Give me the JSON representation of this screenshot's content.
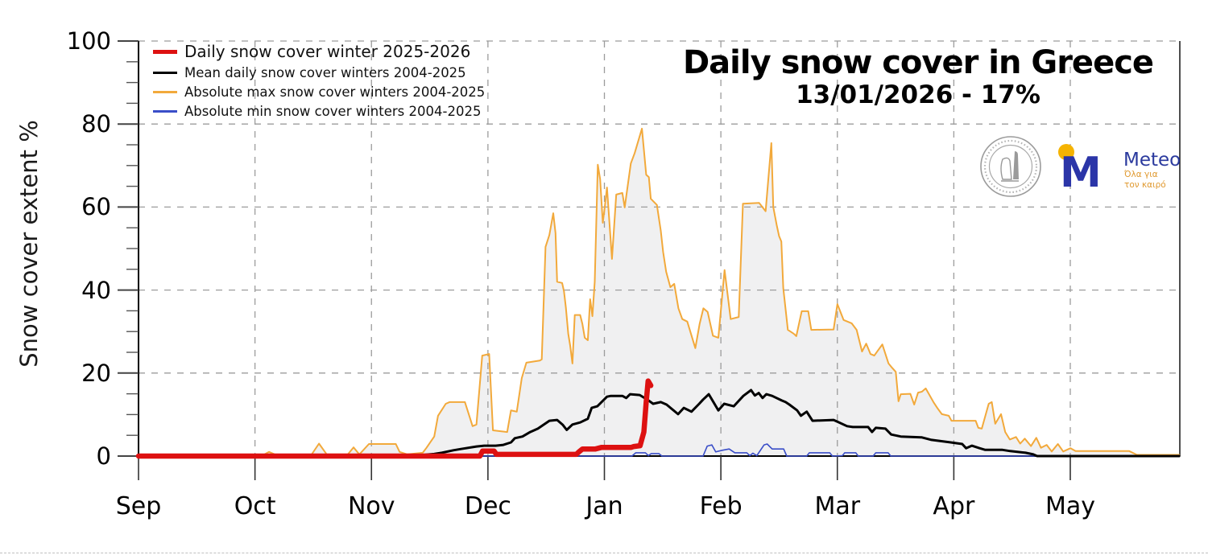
{
  "title": "Daily snow cover in Greece",
  "subtitle": "13/01/2026 - 17%",
  "legend": {
    "items": [
      {
        "label": "Daily snow cover winter 2025-2026",
        "color": "#dd1111",
        "emphasis": true
      },
      {
        "label": "Mean daily snow cover winters 2004-2025",
        "color": "#000000",
        "emphasis": false
      },
      {
        "label": "Absolute max snow cover winters 2004-2025",
        "color": "#f2a93b",
        "emphasis": false
      },
      {
        "label": "Absolute min snow cover winters 2004-2025",
        "color": "#3a4ec8",
        "emphasis": false
      }
    ]
  },
  "branding": {
    "seal": {
      "name": "observatory circular seal"
    },
    "meteo": {
      "m_letter": "M",
      "wordmark": "Meteo",
      "tagline_line1": "Όλα για",
      "tagline_line2": "τον καιρό",
      "colors": {
        "blue": "#2b35a8",
        "yellow": "#f5b301",
        "tagline": "#e0992f",
        "wordmark": "#2b3a9e"
      }
    }
  },
  "chart_data": {
    "type": "line",
    "title": "Daily snow cover in Greece",
    "subtitle": "13/01/2026 - 17%",
    "ylabel": "Snow cover extent %",
    "xlabel": "",
    "ylim": [
      0,
      100
    ],
    "grid": "dashed",
    "units": "percent of Greece covered by snow",
    "x_unit": "days since Sep 1 (months drawn equal width, 1 month = 30.33 days)",
    "y_axis": {
      "ticks": [
        0,
        20,
        40,
        60,
        80,
        100
      ],
      "minor_step": 5
    },
    "x_axis": {
      "months": [
        "Sep",
        "Oct",
        "Nov",
        "Dec",
        "Jan",
        "Feb",
        "Mar",
        "Apr",
        "May"
      ]
    },
    "series": [
      {
        "name": "Absolute max snow cover winters 2004-2025",
        "color": "#f2a93b",
        "width": 2,
        "fill": "#f0f0f1",
        "points": [
          [
            0,
            0
          ],
          [
            32,
            0
          ],
          [
            34,
            1
          ],
          [
            36,
            0.2
          ],
          [
            45,
            0.3
          ],
          [
            47,
            3
          ],
          [
            49,
            0.4
          ],
          [
            54.5,
            0.4
          ],
          [
            56,
            2.1
          ],
          [
            57.5,
            0.4
          ],
          [
            60,
            2.9
          ],
          [
            67,
            2.9
          ],
          [
            68,
            1
          ],
          [
            70,
            0.4
          ],
          [
            74,
            0.8
          ],
          [
            75,
            2
          ],
          [
            77,
            4.7
          ],
          [
            78,
            9.7
          ],
          [
            80,
            12.6
          ],
          [
            81,
            13
          ],
          [
            85,
            13
          ],
          [
            87,
            7.2
          ],
          [
            88,
            7.6
          ],
          [
            89.5,
            24.2
          ],
          [
            91.3,
            24.6
          ],
          [
            92.3,
            6.2
          ],
          [
            96,
            5.8
          ],
          [
            97,
            11
          ],
          [
            98.5,
            10.7
          ],
          [
            99.8,
            18.8
          ],
          [
            101,
            22.5
          ],
          [
            104.5,
            23
          ],
          [
            105,
            23.3
          ],
          [
            106,
            50.4
          ],
          [
            107,
            53.3
          ],
          [
            108,
            58.5
          ],
          [
            108.6,
            53.7
          ],
          [
            109,
            42
          ],
          [
            110.3,
            41.7
          ],
          [
            110.8,
            39.7
          ],
          [
            111.3,
            35.7
          ],
          [
            111.9,
            29.5
          ],
          [
            112.4,
            26.6
          ],
          [
            113,
            22.3
          ],
          [
            113.6,
            34
          ],
          [
            115,
            34
          ],
          [
            115.6,
            31.8
          ],
          [
            116.2,
            28.5
          ],
          [
            117,
            27.9
          ],
          [
            117.6,
            37.8
          ],
          [
            118.2,
            33.7
          ],
          [
            118.8,
            42
          ],
          [
            119.6,
            70.2
          ],
          [
            120.2,
            66.7
          ],
          [
            120.9,
            56.2
          ],
          [
            121.4,
            59.9
          ],
          [
            122,
            64.7
          ],
          [
            123.3,
            47.5
          ],
          [
            124.4,
            63
          ],
          [
            126,
            63.4
          ],
          [
            126.6,
            59.9
          ],
          [
            128.2,
            70.5
          ],
          [
            129.2,
            73
          ],
          [
            131.1,
            78.9
          ],
          [
            132.2,
            67.8
          ],
          [
            132.9,
            67.2
          ],
          [
            133.4,
            62
          ],
          [
            135,
            60.5
          ],
          [
            136,
            54.3
          ],
          [
            136.6,
            49.2
          ],
          [
            137.4,
            44.4
          ],
          [
            138.5,
            40.7
          ],
          [
            139.5,
            41.5
          ],
          [
            140.6,
            35.6
          ],
          [
            141.6,
            33
          ],
          [
            142.9,
            32.4
          ],
          [
            145,
            26
          ],
          [
            146.1,
            31.8
          ],
          [
            147.1,
            35.6
          ],
          [
            148.2,
            34.7
          ],
          [
            149.6,
            29
          ],
          [
            151,
            28.5
          ],
          [
            152.6,
            44.8
          ],
          [
            154.2,
            33
          ],
          [
            156.3,
            33.5
          ],
          [
            157.4,
            60.8
          ],
          [
            161.6,
            61
          ],
          [
            163.3,
            59
          ],
          [
            164.8,
            75.4
          ],
          [
            165.3,
            60
          ],
          [
            166.2,
            55.6
          ],
          [
            166.8,
            53
          ],
          [
            167.4,
            51.7
          ],
          [
            167.9,
            40.5
          ],
          [
            169.1,
            30.4
          ],
          [
            170.6,
            29.5
          ],
          [
            171.3,
            28.9
          ],
          [
            172.7,
            34.9
          ],
          [
            174.4,
            34.9
          ],
          [
            175.2,
            30.4
          ],
          [
            181,
            30.5
          ],
          [
            182,
            36.6
          ],
          [
            183.6,
            32.8
          ],
          [
            185.7,
            32
          ],
          [
            187,
            30.4
          ],
          [
            188.4,
            25.2
          ],
          [
            189.5,
            27.1
          ],
          [
            190.6,
            24.6
          ],
          [
            191.6,
            24.2
          ],
          [
            193.7,
            26.9
          ],
          [
            195.3,
            22.3
          ],
          [
            196.2,
            21.3
          ],
          [
            197.2,
            20.3
          ],
          [
            197.9,
            13.2
          ],
          [
            198.5,
            14.9
          ],
          [
            201,
            15
          ],
          [
            202,
            12.4
          ],
          [
            203,
            15.3
          ],
          [
            204,
            15.5
          ],
          [
            205,
            16.3
          ],
          [
            207,
            13
          ],
          [
            208,
            11.6
          ],
          [
            209.2,
            10.1
          ],
          [
            211,
            9.7
          ],
          [
            211.7,
            8.5
          ],
          [
            218,
            8.5
          ],
          [
            218.7,
            6.8
          ],
          [
            219.6,
            6.6
          ],
          [
            221.4,
            12.6
          ],
          [
            222.2,
            13
          ],
          [
            223.1,
            7.8
          ],
          [
            224.6,
            10.1
          ],
          [
            225.7,
            5.8
          ],
          [
            226.9,
            4
          ],
          [
            228.5,
            4.6
          ],
          [
            229.6,
            3
          ],
          [
            230.8,
            4.2
          ],
          [
            232.4,
            2.4
          ],
          [
            233.8,
            4.4
          ],
          [
            235,
            2
          ],
          [
            236.5,
            2.7
          ],
          [
            237.8,
            1.1
          ],
          [
            239.4,
            2.9
          ],
          [
            240.8,
            1.1
          ],
          [
            242.7,
            1.9
          ],
          [
            244,
            1.2
          ],
          [
            258,
            1.2
          ],
          [
            260,
            0.3
          ],
          [
            271,
            0.3
          ]
        ]
      },
      {
        "name": "Absolute min snow cover winters 2004-2025",
        "color": "#3a4ec8",
        "width": 1.6,
        "fill": null,
        "points": [
          [
            0,
            0
          ],
          [
            128.5,
            0
          ],
          [
            129.5,
            0.8
          ],
          [
            132,
            0.8
          ],
          [
            132.8,
            0.1
          ],
          [
            133.5,
            0.6
          ],
          [
            135.5,
            0.6
          ],
          [
            136.3,
            0
          ],
          [
            147,
            0
          ],
          [
            148.1,
            2.4
          ],
          [
            149.3,
            2.7
          ],
          [
            150.3,
            1
          ],
          [
            152,
            1.4
          ],
          [
            153.8,
            1.7
          ],
          [
            155.3,
            0.8
          ],
          [
            158.4,
            0.8
          ],
          [
            159.2,
            0.1
          ],
          [
            160,
            0.7
          ],
          [
            161,
            0.1
          ],
          [
            162.9,
            2.7
          ],
          [
            163.7,
            2.9
          ],
          [
            165,
            1.7
          ],
          [
            168,
            1.7
          ],
          [
            168.8,
            0
          ],
          [
            174,
            0
          ],
          [
            174.7,
            0.8
          ],
          [
            180,
            0.8
          ],
          [
            180.7,
            0
          ],
          [
            183.3,
            0.1
          ],
          [
            183.9,
            0.8
          ],
          [
            186.8,
            0.8
          ],
          [
            187.4,
            0
          ],
          [
            191.3,
            0
          ],
          [
            192,
            0.8
          ],
          [
            195.2,
            0.8
          ],
          [
            195.9,
            0
          ],
          [
            271,
            0
          ]
        ]
      },
      {
        "name": "Mean daily snow cover winters 2004-2025",
        "color": "#000000",
        "width": 3,
        "fill": null,
        "points": [
          [
            0,
            0
          ],
          [
            70,
            0
          ],
          [
            73,
            0.2
          ],
          [
            77,
            0.5
          ],
          [
            79,
            0.8
          ],
          [
            82,
            1.4
          ],
          [
            84,
            1.7
          ],
          [
            88,
            2.3
          ],
          [
            90,
            2.5
          ],
          [
            93,
            2.5
          ],
          [
            95,
            2.7
          ],
          [
            97,
            3.3
          ],
          [
            98,
            4.3
          ],
          [
            100,
            4.7
          ],
          [
            102,
            5.8
          ],
          [
            104,
            6.6
          ],
          [
            107,
            8.5
          ],
          [
            109,
            8.7
          ],
          [
            110.5,
            7.5
          ],
          [
            111.5,
            6.3
          ],
          [
            113,
            7.6
          ],
          [
            115,
            8.1
          ],
          [
            117,
            9
          ],
          [
            118,
            11.6
          ],
          [
            119.5,
            12
          ],
          [
            122,
            14.3
          ],
          [
            123,
            14.5
          ],
          [
            126,
            14.5
          ],
          [
            127,
            14
          ],
          [
            128,
            14.9
          ],
          [
            130.5,
            14.7
          ],
          [
            132.5,
            13.6
          ],
          [
            134,
            12.6
          ],
          [
            136,
            13
          ],
          [
            137.5,
            12.4
          ],
          [
            140.5,
            10.1
          ],
          [
            142,
            11.6
          ],
          [
            144,
            10.7
          ],
          [
            146,
            12.6
          ],
          [
            147,
            13.6
          ],
          [
            148.5,
            14.9
          ],
          [
            151,
            11
          ],
          [
            152.5,
            12.6
          ],
          [
            155,
            12
          ],
          [
            157.5,
            14.5
          ],
          [
            159.5,
            15.9
          ],
          [
            160.5,
            14.6
          ],
          [
            161.5,
            15.2
          ],
          [
            162.5,
            14
          ],
          [
            163.5,
            14.9
          ],
          [
            165,
            14.5
          ],
          [
            167.5,
            13.4
          ],
          [
            168.5,
            13
          ],
          [
            169.5,
            12.4
          ],
          [
            171.5,
            11
          ],
          [
            172.5,
            9.7
          ],
          [
            174,
            10.7
          ],
          [
            175.5,
            8.5
          ],
          [
            181,
            8.7
          ],
          [
            182,
            8.3
          ],
          [
            184.5,
            7.2
          ],
          [
            186,
            7
          ],
          [
            190,
            7
          ],
          [
            191,
            5.8
          ],
          [
            192,
            6.8
          ],
          [
            194.5,
            6.6
          ],
          [
            196,
            5.2
          ],
          [
            198.5,
            4.7
          ],
          [
            204,
            4.5
          ],
          [
            206.5,
            3.9
          ],
          [
            211.5,
            3.3
          ],
          [
            214.5,
            2.9
          ],
          [
            215.5,
            1.9
          ],
          [
            217,
            2.5
          ],
          [
            219,
            1.9
          ],
          [
            220.5,
            1.5
          ],
          [
            225,
            1.5
          ],
          [
            227,
            1.2
          ],
          [
            231,
            0.8
          ],
          [
            233,
            0.4
          ],
          [
            234,
            0
          ],
          [
            271,
            0
          ]
        ]
      },
      {
        "name": "Daily snow cover winter 2025-2026",
        "color": "#dd1111",
        "width": 6.5,
        "fill": null,
        "points": [
          [
            0,
            0
          ],
          [
            88.9,
            0
          ],
          [
            89.6,
            1.2
          ],
          [
            92.6,
            1.2
          ],
          [
            93.2,
            0.4
          ],
          [
            114,
            0.4
          ],
          [
            114.7,
            1
          ],
          [
            115.6,
            1.7
          ],
          [
            119,
            1.7
          ],
          [
            120.6,
            2.1
          ],
          [
            128.3,
            2.1
          ],
          [
            129,
            2.3
          ],
          [
            130.6,
            2.5
          ],
          [
            131.6,
            5.8
          ],
          [
            132.2,
            13
          ],
          [
            132.7,
            18.1
          ],
          [
            133.4,
            17
          ]
        ]
      }
    ]
  }
}
